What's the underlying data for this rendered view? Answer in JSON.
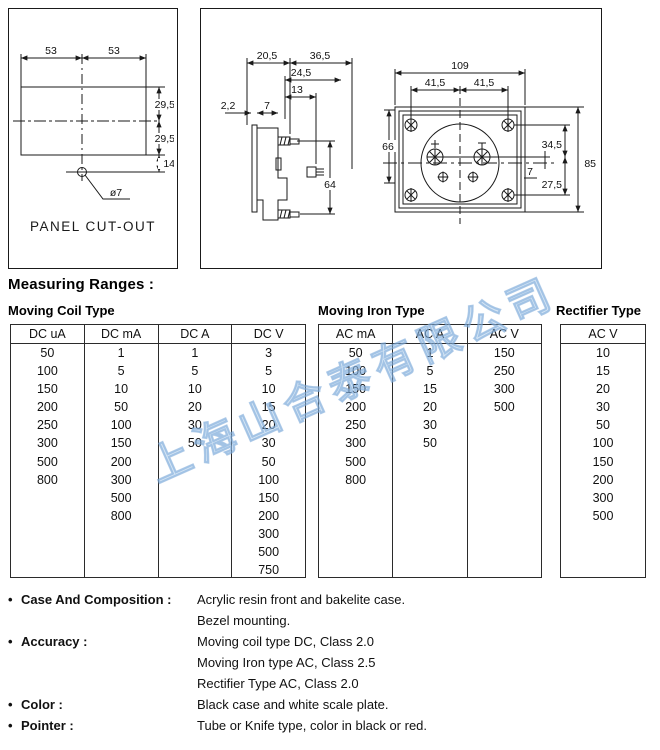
{
  "sections": {
    "measuring_ranges_title": "Measuring Ranges :"
  },
  "drawings": {
    "panel_cutout": {
      "caption": "PANEL CUT-OUT",
      "dims": {
        "w1": "53",
        "w2": "53",
        "h1": "29,5",
        "h2": "29,5",
        "off": "14",
        "hole": "ø7"
      }
    },
    "side": {
      "dims": {
        "a": "20,5",
        "b": "36,5",
        "c": "24,5",
        "d": "13",
        "e": "7",
        "f": "2,2",
        "g": "64"
      }
    },
    "rear": {
      "dims": {
        "w": "109",
        "s1": "41,5",
        "s2": "41,5",
        "h": "66",
        "u": "34,5",
        "t": "85",
        "o": "7",
        "l": "27,5"
      }
    }
  },
  "tables": {
    "moving_coil": {
      "title": "Moving Coil Type",
      "columns": [
        "DC uA",
        "DC mA",
        "DC A",
        "DC V"
      ],
      "rows": [
        [
          "50",
          "1",
          "1",
          "3"
        ],
        [
          "100",
          "5",
          "5",
          "5"
        ],
        [
          "150",
          "10",
          "10",
          "10"
        ],
        [
          "200",
          "50",
          "20",
          "15"
        ],
        [
          "250",
          "100",
          "30",
          "20"
        ],
        [
          "300",
          "150",
          "50",
          "30"
        ],
        [
          "500",
          "200",
          "",
          "50"
        ],
        [
          "800",
          "300",
          "",
          "100"
        ],
        [
          "",
          "500",
          "",
          "150"
        ],
        [
          "",
          "800",
          "",
          "200"
        ],
        [
          "",
          "",
          "",
          "300"
        ],
        [
          "",
          "",
          "",
          "500"
        ],
        [
          "",
          "",
          "",
          "750"
        ]
      ]
    },
    "moving_iron": {
      "title": "Moving Iron Type",
      "columns": [
        "AC mA",
        "AC A",
        "AC V"
      ],
      "rows": [
        [
          "50",
          "1",
          "150"
        ],
        [
          "100",
          "5",
          "250"
        ],
        [
          "150",
          "15",
          "300"
        ],
        [
          "200",
          "20",
          "500"
        ],
        [
          "250",
          "30",
          ""
        ],
        [
          "300",
          "50",
          ""
        ],
        [
          "500",
          "",
          ""
        ],
        [
          "800",
          "",
          ""
        ]
      ]
    },
    "rectifier": {
      "title": "Rectifier Type",
      "columns": [
        "AC V"
      ],
      "rows": [
        [
          "10"
        ],
        [
          "15"
        ],
        [
          "20"
        ],
        [
          "30"
        ],
        [
          "50"
        ],
        [
          "100"
        ],
        [
          "150"
        ],
        [
          "200"
        ],
        [
          "300"
        ],
        [
          "500"
        ]
      ]
    }
  },
  "specs": [
    {
      "label": "Case And Composition :",
      "values": [
        "Acrylic resin front and bakelite case.",
        "Bezel mounting."
      ]
    },
    {
      "label": "Accuracy :",
      "values": [
        "Moving coil type DC, Class 2.0",
        "Moving Iron type AC, Class 2.5",
        "Rectifier Type AC, Class 2.0"
      ]
    },
    {
      "label": "Color :",
      "values": [
        "Black case and white scale plate."
      ]
    },
    {
      "label": "Pointer :",
      "values": [
        "Tube or Knife type, color in black or red."
      ]
    }
  ],
  "watermark": {
    "text": "上海山合泰有限公司"
  }
}
